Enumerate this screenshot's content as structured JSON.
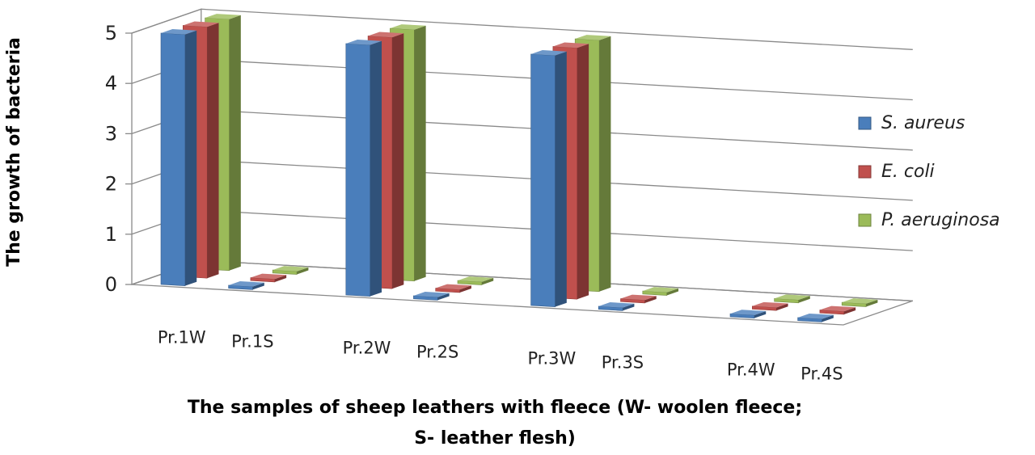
{
  "chart_data": {
    "type": "bar",
    "categories": [
      "Pr.1W",
      "Pr.1S",
      "Pr.2W",
      "Pr.2S",
      "Pr.3W",
      "Pr.3S",
      "Pr.4W",
      "Pr.4S"
    ],
    "series": [
      {
        "name": "S. aureus",
        "values": [
          5,
          0,
          5,
          0,
          5,
          0,
          0,
          0
        ]
      },
      {
        "name": "E. coli",
        "values": [
          5,
          0,
          5,
          0,
          5,
          0,
          0,
          0
        ]
      },
      {
        "name": "P. aeruginosa",
        "values": [
          5,
          0,
          5,
          0,
          5,
          0,
          0,
          0
        ]
      }
    ],
    "xlabel": "The samples of sheep leathers with fleece (W- woolen fleece; S- leather flesh)",
    "xlabel_lines": [
      "The samples of sheep leathers with fleece (W- woolen fleece;",
      "S- leather flesh)"
    ],
    "ylabel": "The growth of bacteria",
    "ylim": [
      0,
      5
    ],
    "yticks": [
      "0",
      "1",
      "2",
      "3",
      "4",
      "5"
    ],
    "grid": true,
    "legend_position": "right",
    "style": "3d-clustered-column",
    "colors": {
      "S. aureus": "#4a7ebb",
      "E. coli": "#c0504d",
      "P. aeruginosa": "#9bbb59"
    }
  }
}
